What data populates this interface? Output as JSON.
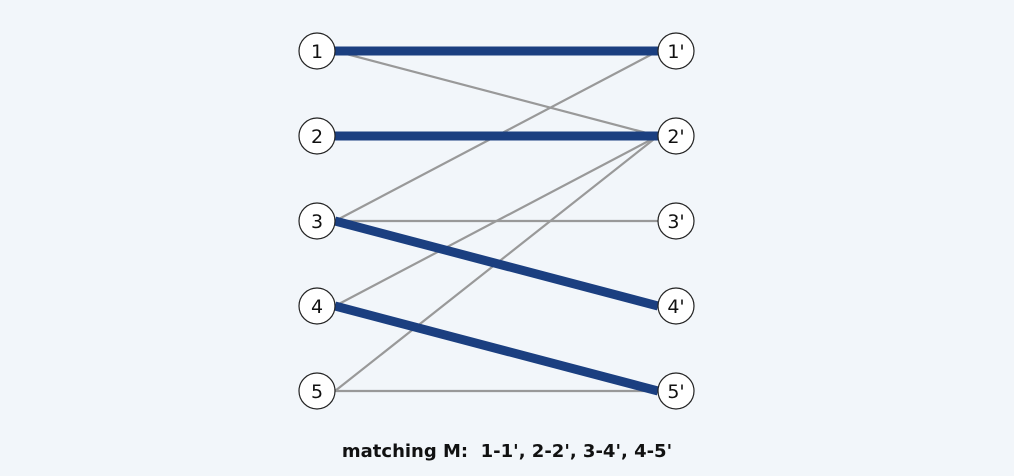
{
  "graph": {
    "left_nodes": [
      {
        "id": "L1",
        "label": "1"
      },
      {
        "id": "L2",
        "label": "2"
      },
      {
        "id": "L3",
        "label": "3"
      },
      {
        "id": "L4",
        "label": "4"
      },
      {
        "id": "L5",
        "label": "5"
      }
    ],
    "right_nodes": [
      {
        "id": "R1",
        "label": "1'"
      },
      {
        "id": "R2",
        "label": "2'"
      },
      {
        "id": "R3",
        "label": "3'"
      },
      {
        "id": "R4",
        "label": "4'"
      },
      {
        "id": "R5",
        "label": "5'"
      }
    ],
    "edges": [
      {
        "from": "L1",
        "to": "R1",
        "matched": true
      },
      {
        "from": "L1",
        "to": "R2",
        "matched": false
      },
      {
        "from": "L2",
        "to": "R2",
        "matched": true
      },
      {
        "from": "L3",
        "to": "R1",
        "matched": false
      },
      {
        "from": "L3",
        "to": "R3",
        "matched": false
      },
      {
        "from": "L3",
        "to": "R4",
        "matched": true
      },
      {
        "from": "L4",
        "to": "R2",
        "matched": false
      },
      {
        "from": "L4",
        "to": "R5",
        "matched": true
      },
      {
        "from": "L5",
        "to": "R2",
        "matched": false
      },
      {
        "from": "L5",
        "to": "R5",
        "matched": false
      }
    ],
    "colors": {
      "matched_edge": "#1b3f80",
      "plain_edge": "#999999",
      "background": "#f2f6fa"
    }
  },
  "caption": "matching M:  1-1', 2-2', 3-4', 4-5'"
}
